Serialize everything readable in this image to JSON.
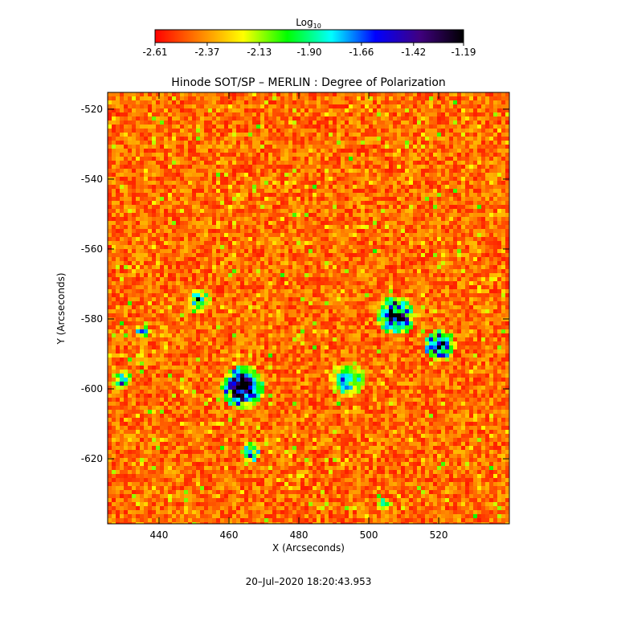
{
  "chart_data": {
    "type": "image",
    "title": "Hinode SOT/SP – MERLIN : Degree of Polarization",
    "colorbar_label": "Log",
    "colorbar_label_sub": "10",
    "clim": [
      -2.61,
      -1.19
    ],
    "cticks": [
      -2.61,
      -2.37,
      -2.13,
      -1.9,
      -1.66,
      -1.42,
      -1.19
    ],
    "colormap": [
      "#ff0000",
      "#ff8000",
      "#ffff00",
      "#00ff00",
      "#00ffff",
      "#0000ff",
      "#400080",
      "#000000"
    ],
    "x_label": "X (Arcseconds)",
    "y_label": "Y (Arcseconds)",
    "xlim": [
      425.3,
      540.2
    ],
    "ylim": [
      -638.6,
      -515.2
    ],
    "xticks": [
      440,
      460,
      480,
      500,
      520
    ],
    "yticks": [
      -520,
      -540,
      -560,
      -580,
      -600,
      -620
    ],
    "date": "20–Jul–2020 18:20:43.953"
  }
}
